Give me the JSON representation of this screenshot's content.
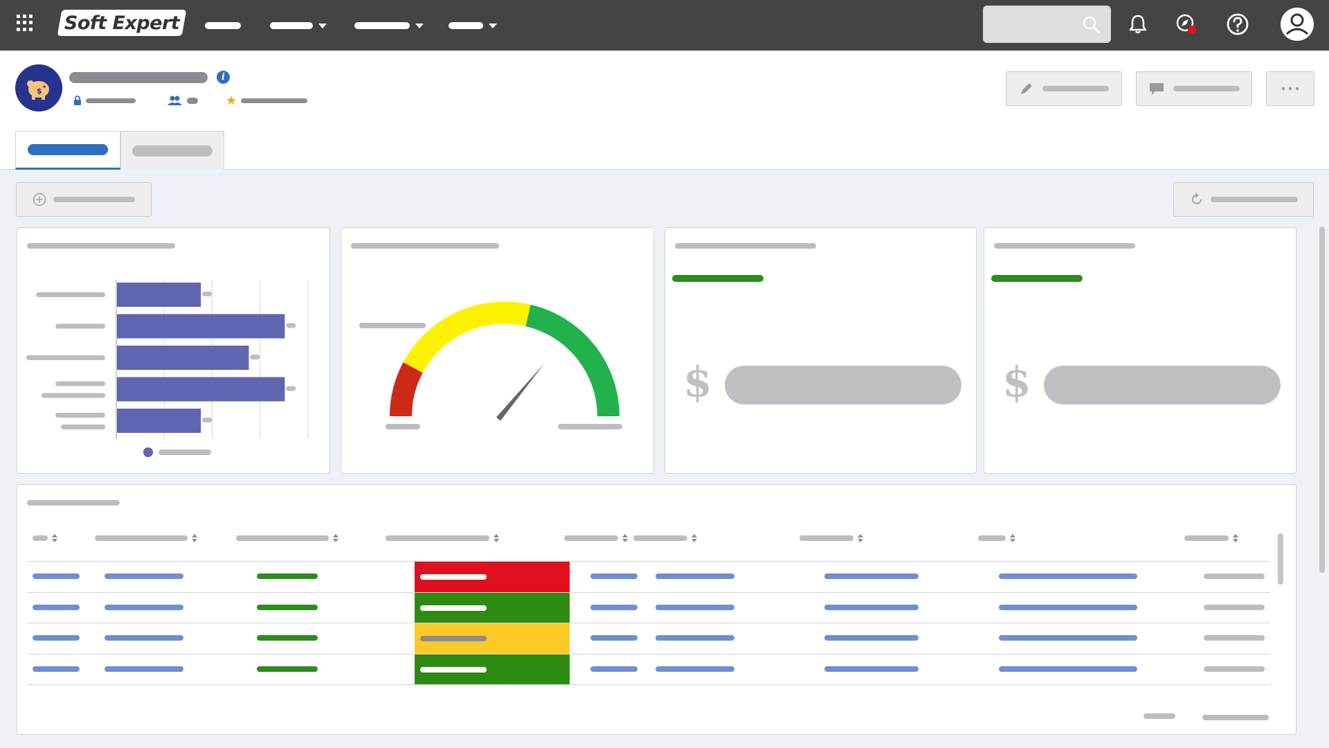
{
  "app": {
    "logo_text": "Soft Expert"
  },
  "colors": {
    "topbar": "#444444",
    "accent": "#2f6fbf",
    "chart_bar": "#6065b0",
    "gauge_red": "#cc2a16",
    "gauge_yellow": "#fff200",
    "gauge_green": "#22b14c",
    "status_red": "#e0101f",
    "status_green": "#2e8b12",
    "status_yellow": "#ffc926",
    "notification_dot": "#e0101f"
  },
  "icons": {
    "apps": "grid-icon",
    "search": "search-icon",
    "notifications": "bell-icon",
    "compass": "compass-icon",
    "help": "help-icon",
    "user": "user-icon",
    "record": "piggy-bank-icon",
    "edit": "pencil-icon",
    "comment": "comment-icon",
    "more": "more-icon",
    "add": "plus-circle-icon",
    "refresh": "refresh-icon",
    "lock": "lock-icon",
    "team": "team-icon",
    "star": "star-icon"
  },
  "widgets": {
    "kpi_1_symbol": "$",
    "kpi_2_symbol": "$",
    "gauge_value": 0.72
  },
  "table": {
    "row_statuses": [
      "red",
      "green",
      "yellow",
      "green"
    ]
  },
  "chart_data": {
    "type": "bar",
    "orientation": "horizontal",
    "values": [
      35,
      70,
      55,
      70,
      35
    ],
    "xlim": [
      0,
      80
    ],
    "grid": true,
    "legend": "bottom"
  }
}
